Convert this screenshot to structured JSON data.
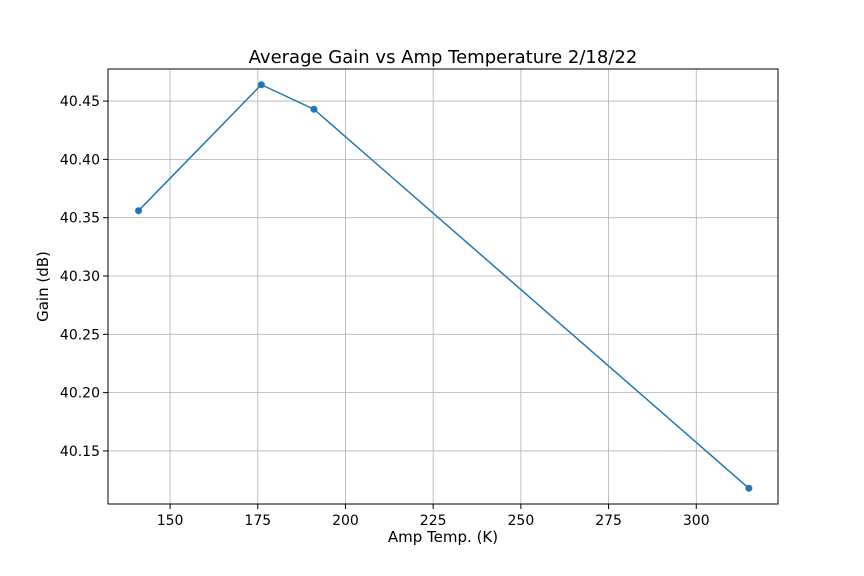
{
  "chart_data": {
    "type": "line",
    "title": "Average Gain vs Amp Temperature 2/18/22",
    "xlabel": "Amp Temp. (K)",
    "ylabel": "Gain (dB)",
    "xlim": [
      132.3,
      323.3
    ],
    "ylim": [
      40.1045,
      40.4775
    ],
    "xticks": [
      150,
      175,
      200,
      225,
      250,
      275,
      300
    ],
    "xtick_labels": [
      "150",
      "175",
      "200",
      "225",
      "250",
      "275",
      "300"
    ],
    "yticks": [
      40.15,
      40.2,
      40.25,
      40.3,
      40.35,
      40.4,
      40.45
    ],
    "ytick_labels": [
      "40.15",
      "40.20",
      "40.25",
      "40.30",
      "40.35",
      "40.40",
      "40.45"
    ],
    "grid": true,
    "series": [
      {
        "color": "#1f77b4",
        "marker": "circle",
        "x": [
          141,
          176,
          191,
          315
        ],
        "y": [
          40.356,
          40.464,
          40.443,
          40.118
        ]
      }
    ]
  }
}
